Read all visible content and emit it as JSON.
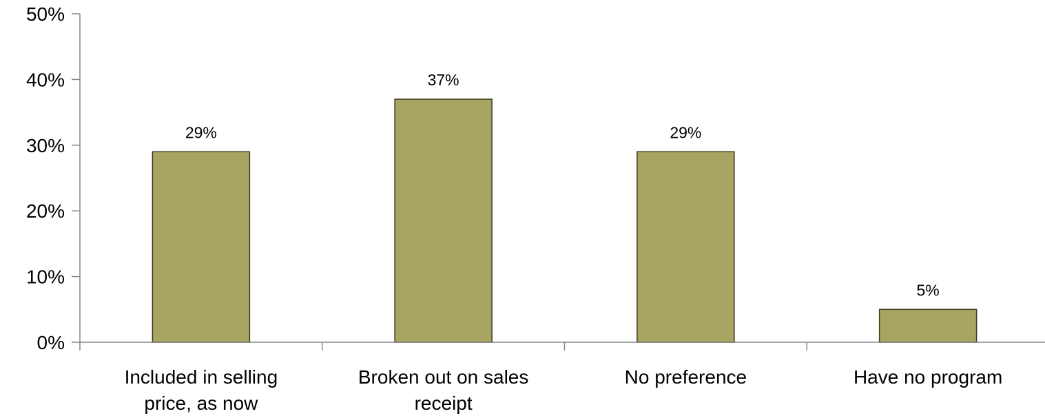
{
  "chart_data": {
    "type": "bar",
    "title": "",
    "xlabel": "",
    "ylabel": "",
    "categories": [
      [
        "Included in selling",
        "price, as now"
      ],
      [
        "Broken out on sales",
        "receipt"
      ],
      [
        "No preference"
      ],
      [
        "Have no program"
      ]
    ],
    "values": [
      29,
      37,
      29,
      5
    ],
    "data_labels": [
      "29%",
      "37%",
      "29%",
      "5%"
    ],
    "ylim": [
      0,
      50
    ],
    "yticks": [
      0,
      10,
      20,
      30,
      40,
      50
    ],
    "ytick_labels": [
      "0%",
      "10%",
      "20%",
      "30%",
      "40%",
      "50%"
    ],
    "grid": false,
    "legend": "none",
    "bar_color": "#a8a462",
    "bar_edge_color": "#3f3a1e",
    "axis_color": "#868686"
  }
}
